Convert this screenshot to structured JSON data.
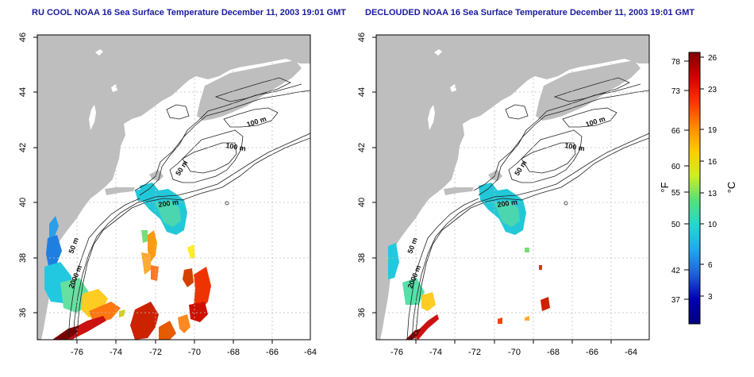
{
  "panels": [
    {
      "title": "RU COOL NOAA 16 Sea Surface Temperature December 11, 2003 19:01 GMT",
      "lat_ticks": [
        "36",
        "38",
        "40",
        "42",
        "44",
        "46"
      ],
      "lon_ticks": [
        "-76",
        "-74",
        "-72",
        "-70",
        "-68",
        "-66",
        "-64"
      ],
      "contour_labels": [
        "100 m",
        "100 m",
        "50 m",
        "200 m",
        "50 m",
        "2000 m"
      ]
    },
    {
      "title": "DECLOUDED NOAA 16 Sea Surface Temperature December 11, 2003 19:01 GMT",
      "lat_ticks": [
        "36",
        "38",
        "40",
        "42",
        "44",
        "46"
      ],
      "lon_ticks": [
        "-76",
        "-74",
        "-72",
        "-70",
        "-68",
        "-66",
        "-64"
      ],
      "contour_labels": [
        "100 m",
        "100 m",
        "50 m",
        "200 m",
        "50 m",
        "2000 m"
      ]
    }
  ],
  "colorbar": {
    "fahrenheit_ticks": [
      "78",
      "73",
      "66",
      "60",
      "55",
      "50",
      "42",
      "37"
    ],
    "celsius_ticks": [
      "26",
      "23",
      "19",
      "16",
      "13",
      "10",
      "6",
      "3"
    ],
    "f_unit": "°F",
    "c_unit": "°C",
    "colors": [
      "#800000",
      "#d40000",
      "#ff3300",
      "#ff8800",
      "#ffcc00",
      "#ccee22",
      "#55e07a",
      "#22d8d0",
      "#1fa8ee",
      "#1f5fd8",
      "#0000b4",
      "#000080"
    ]
  },
  "colors": {
    "land": "#bebebe",
    "grid": "#bfbfbf",
    "contour": "#222222",
    "title": "#1a1a9c"
  }
}
